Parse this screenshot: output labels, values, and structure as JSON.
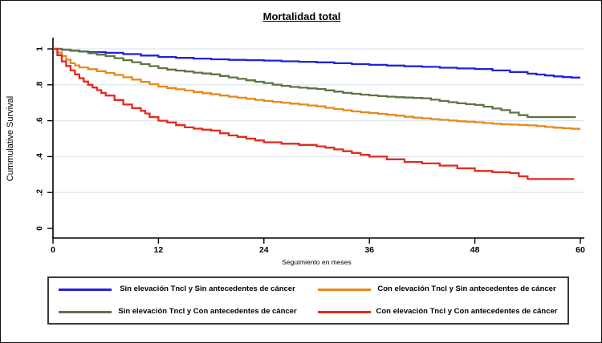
{
  "chart_data": {
    "type": "line",
    "subtype": "kaplan-meier-step-survival",
    "title": "Mortalidad total",
    "xlabel": "Seguimiento en meses",
    "ylabel": "Cummulative Survival",
    "xlim": [
      0,
      60
    ],
    "ylim": [
      0,
      1
    ],
    "grid": "horizontal",
    "gridline_color": "#dfe7f0",
    "axis_color": "#000000",
    "legend_position": "bottom-boxed-two-columns",
    "xticks": [
      {
        "v": 0,
        "label": "0"
      },
      {
        "v": 12,
        "label": "12"
      },
      {
        "v": 24,
        "label": "24"
      },
      {
        "v": 36,
        "label": "36"
      },
      {
        "v": 48,
        "label": "48"
      },
      {
        "v": 60,
        "label": "60"
      }
    ],
    "yticks": [
      {
        "v": 0,
        "label": "0"
      },
      {
        "v": 0.2,
        "label": ".2"
      },
      {
        "v": 0.4,
        "label": ".4"
      },
      {
        "v": 0.6,
        "label": ".6"
      },
      {
        "v": 0.8,
        "label": ".8"
      },
      {
        "v": 1,
        "label": "1"
      }
    ],
    "series": [
      {
        "name": "Sin elevación TncI y Sin antecedentes de cáncer",
        "color": "#2222dd",
        "points": [
          [
            0,
            1
          ],
          [
            1,
            0.995
          ],
          [
            2,
            0.99
          ],
          [
            3,
            0.986
          ],
          [
            4,
            0.982
          ],
          [
            6,
            0.978
          ],
          [
            8,
            0.971
          ],
          [
            10,
            0.963
          ],
          [
            12,
            0.955
          ],
          [
            14,
            0.95
          ],
          [
            16,
            0.946
          ],
          [
            18,
            0.942
          ],
          [
            20,
            0.939
          ],
          [
            22,
            0.937
          ],
          [
            24,
            0.935
          ],
          [
            26,
            0.931
          ],
          [
            28,
            0.928
          ],
          [
            30,
            0.925
          ],
          [
            32,
            0.92
          ],
          [
            34,
            0.915
          ],
          [
            36,
            0.911
          ],
          [
            38,
            0.907
          ],
          [
            40,
            0.903
          ],
          [
            42,
            0.9
          ],
          [
            44,
            0.895
          ],
          [
            46,
            0.891
          ],
          [
            48,
            0.888
          ],
          [
            50,
            0.88
          ],
          [
            52,
            0.871
          ],
          [
            54,
            0.862
          ],
          [
            55,
            0.857
          ],
          [
            56,
            0.852
          ],
          [
            57,
            0.847
          ],
          [
            58,
            0.843
          ],
          [
            59,
            0.84
          ],
          [
            60,
            0.84
          ]
        ]
      },
      {
        "name": "Sin elevación TncI y Con antecedentes de cáncer",
        "color": "#5e7444",
        "points": [
          [
            0,
            1
          ],
          [
            1,
            0.996
          ],
          [
            2,
            0.991
          ],
          [
            3,
            0.985
          ],
          [
            4,
            0.976
          ],
          [
            5,
            0.968
          ],
          [
            6,
            0.96
          ],
          [
            7,
            0.948
          ],
          [
            8,
            0.937
          ],
          [
            9,
            0.926
          ],
          [
            10,
            0.915
          ],
          [
            11,
            0.904
          ],
          [
            12,
            0.893
          ],
          [
            13,
            0.885
          ],
          [
            14,
            0.879
          ],
          [
            15,
            0.874
          ],
          [
            16,
            0.868
          ],
          [
            17,
            0.863
          ],
          [
            18,
            0.858
          ],
          [
            19,
            0.849
          ],
          [
            20,
            0.841
          ],
          [
            21,
            0.833
          ],
          [
            22,
            0.825
          ],
          [
            23,
            0.817
          ],
          [
            24,
            0.81
          ],
          [
            25,
            0.801
          ],
          [
            26,
            0.794
          ],
          [
            27,
            0.788
          ],
          [
            28,
            0.784
          ],
          [
            29,
            0.78
          ],
          [
            30,
            0.777
          ],
          [
            31,
            0.769
          ],
          [
            32,
            0.762
          ],
          [
            33,
            0.755
          ],
          [
            34,
            0.75
          ],
          [
            35,
            0.745
          ],
          [
            36,
            0.741
          ],
          [
            37,
            0.737
          ],
          [
            38,
            0.734
          ],
          [
            39,
            0.731
          ],
          [
            40,
            0.729
          ],
          [
            41,
            0.727
          ],
          [
            42,
            0.725
          ],
          [
            43,
            0.717
          ],
          [
            44,
            0.71
          ],
          [
            45,
            0.703
          ],
          [
            46,
            0.697
          ],
          [
            47,
            0.692
          ],
          [
            48,
            0.688
          ],
          [
            49,
            0.678
          ],
          [
            50,
            0.668
          ],
          [
            51,
            0.659
          ],
          [
            52,
            0.645
          ],
          [
            53,
            0.631
          ],
          [
            54,
            0.62
          ],
          [
            59.5,
            0.62
          ]
        ]
      },
      {
        "name": "Con elevación TncI y Sin antecedentes de cáncer",
        "color": "#e68a1e",
        "points": [
          [
            0,
            1
          ],
          [
            0.5,
            0.98
          ],
          [
            1,
            0.96
          ],
          [
            1.5,
            0.94
          ],
          [
            2,
            0.92
          ],
          [
            2.5,
            0.908
          ],
          [
            3,
            0.897
          ],
          [
            4,
            0.887
          ],
          [
            5,
            0.876
          ],
          [
            6,
            0.866
          ],
          [
            7,
            0.855
          ],
          [
            8,
            0.842
          ],
          [
            9,
            0.829
          ],
          [
            10,
            0.816
          ],
          [
            11,
            0.803
          ],
          [
            12,
            0.79
          ],
          [
            13,
            0.782
          ],
          [
            14,
            0.775
          ],
          [
            15,
            0.768
          ],
          [
            16,
            0.76
          ],
          [
            17,
            0.753
          ],
          [
            18,
            0.747
          ],
          [
            19,
            0.74
          ],
          [
            20,
            0.734
          ],
          [
            21,
            0.728
          ],
          [
            22,
            0.722
          ],
          [
            23,
            0.716
          ],
          [
            24,
            0.71
          ],
          [
            25,
            0.705
          ],
          [
            26,
            0.7
          ],
          [
            27,
            0.695
          ],
          [
            28,
            0.69
          ],
          [
            29,
            0.685
          ],
          [
            30,
            0.68
          ],
          [
            31,
            0.672
          ],
          [
            32,
            0.665
          ],
          [
            33,
            0.658
          ],
          [
            34,
            0.652
          ],
          [
            35,
            0.647
          ],
          [
            36,
            0.643
          ],
          [
            37,
            0.638
          ],
          [
            38,
            0.633
          ],
          [
            39,
            0.628
          ],
          [
            40,
            0.622
          ],
          [
            41,
            0.617
          ],
          [
            42,
            0.613
          ],
          [
            43,
            0.609
          ],
          [
            44,
            0.605
          ],
          [
            45,
            0.601
          ],
          [
            46,
            0.597
          ],
          [
            47,
            0.594
          ],
          [
            48,
            0.591
          ],
          [
            49,
            0.587
          ],
          [
            50,
            0.583
          ],
          [
            51,
            0.58
          ],
          [
            52,
            0.578
          ],
          [
            53,
            0.576
          ],
          [
            54,
            0.574
          ],
          [
            55,
            0.57
          ],
          [
            56,
            0.565
          ],
          [
            57,
            0.561
          ],
          [
            58,
            0.558
          ],
          [
            59,
            0.555
          ],
          [
            60,
            0.555
          ]
        ]
      },
      {
        "name": "Con elevación TncI y Con antecedentes de cáncer",
        "color": "#e42a1d",
        "points": [
          [
            0,
            1
          ],
          [
            0.5,
            0.965
          ],
          [
            1,
            0.93
          ],
          [
            1.5,
            0.905
          ],
          [
            2,
            0.88
          ],
          [
            2.5,
            0.858
          ],
          [
            3,
            0.836
          ],
          [
            3.5,
            0.818
          ],
          [
            4,
            0.8
          ],
          [
            4.5,
            0.785
          ],
          [
            5,
            0.77
          ],
          [
            5.5,
            0.755
          ],
          [
            6,
            0.74
          ],
          [
            7,
            0.715
          ],
          [
            8,
            0.69
          ],
          [
            9,
            0.67
          ],
          [
            10,
            0.655
          ],
          [
            10.5,
            0.64
          ],
          [
            11,
            0.62
          ],
          [
            12,
            0.6
          ],
          [
            13,
            0.59
          ],
          [
            14,
            0.575
          ],
          [
            15,
            0.563
          ],
          [
            16,
            0.556
          ],
          [
            17,
            0.55
          ],
          [
            18,
            0.545
          ],
          [
            19,
            0.53
          ],
          [
            20,
            0.518
          ],
          [
            21,
            0.51
          ],
          [
            22,
            0.5
          ],
          [
            23,
            0.49
          ],
          [
            24,
            0.48
          ],
          [
            26,
            0.472
          ],
          [
            28,
            0.465
          ],
          [
            30,
            0.457
          ],
          [
            31,
            0.45
          ],
          [
            32,
            0.44
          ],
          [
            33,
            0.43
          ],
          [
            34,
            0.42
          ],
          [
            35,
            0.41
          ],
          [
            36,
            0.4
          ],
          [
            38,
            0.385
          ],
          [
            40,
            0.37
          ],
          [
            42,
            0.362
          ],
          [
            44,
            0.35
          ],
          [
            46,
            0.335
          ],
          [
            48,
            0.32
          ],
          [
            50,
            0.313
          ],
          [
            52,
            0.308
          ],
          [
            53,
            0.29
          ],
          [
            54,
            0.275
          ],
          [
            59.3,
            0.275
          ]
        ]
      }
    ]
  }
}
